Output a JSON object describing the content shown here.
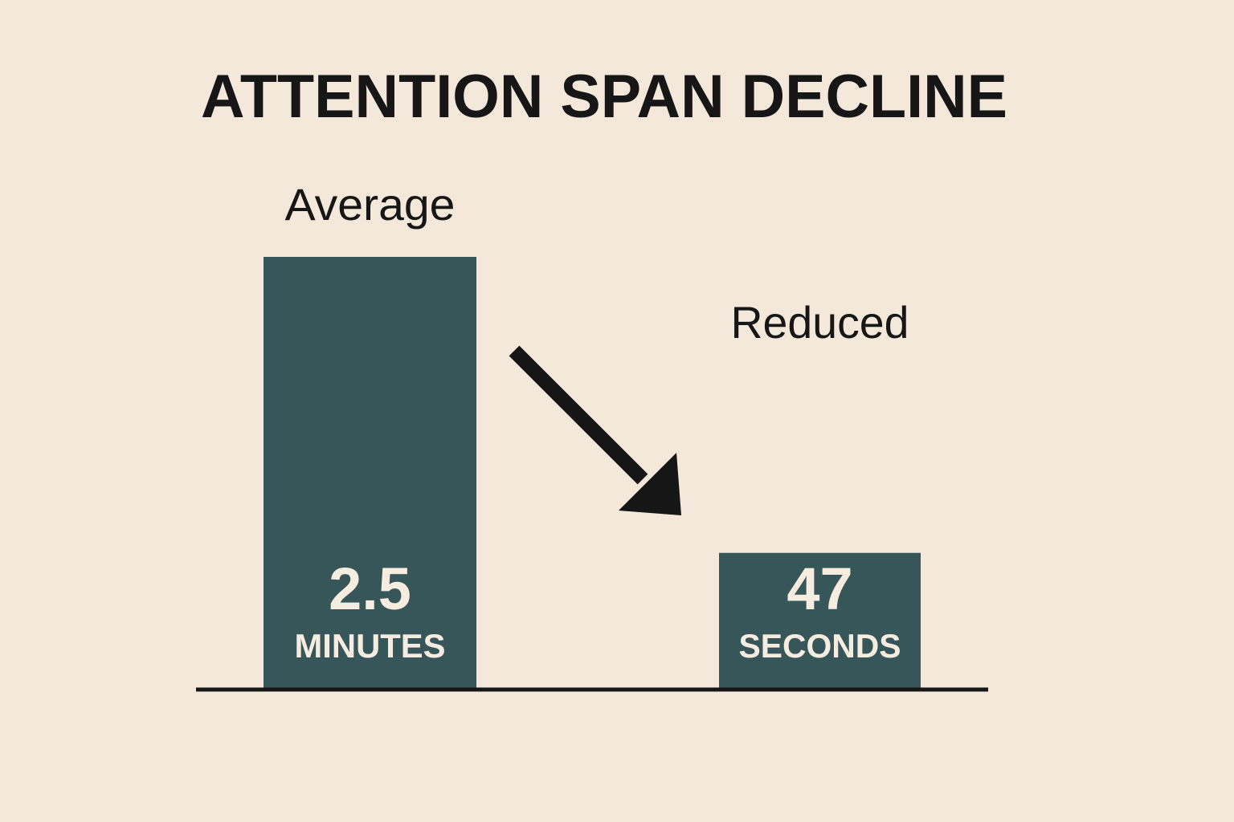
{
  "chart_data": {
    "type": "bar",
    "title": "ATTENTION SPAN DECLINE",
    "categories": [
      "Average",
      "Reduced"
    ],
    "values_seconds": [
      150,
      47
    ],
    "bar_labels": [
      {
        "value": "2.5",
        "unit": "MINUTES"
      },
      {
        "value": "47",
        "unit": "SECONDS"
      }
    ],
    "annotation": "downward-arrow",
    "grid": false,
    "legend": "none",
    "colors": {
      "bar": "#37565a",
      "background": "#f3e8da",
      "text": "#161616",
      "bar_text": "#f6ecdf"
    }
  }
}
